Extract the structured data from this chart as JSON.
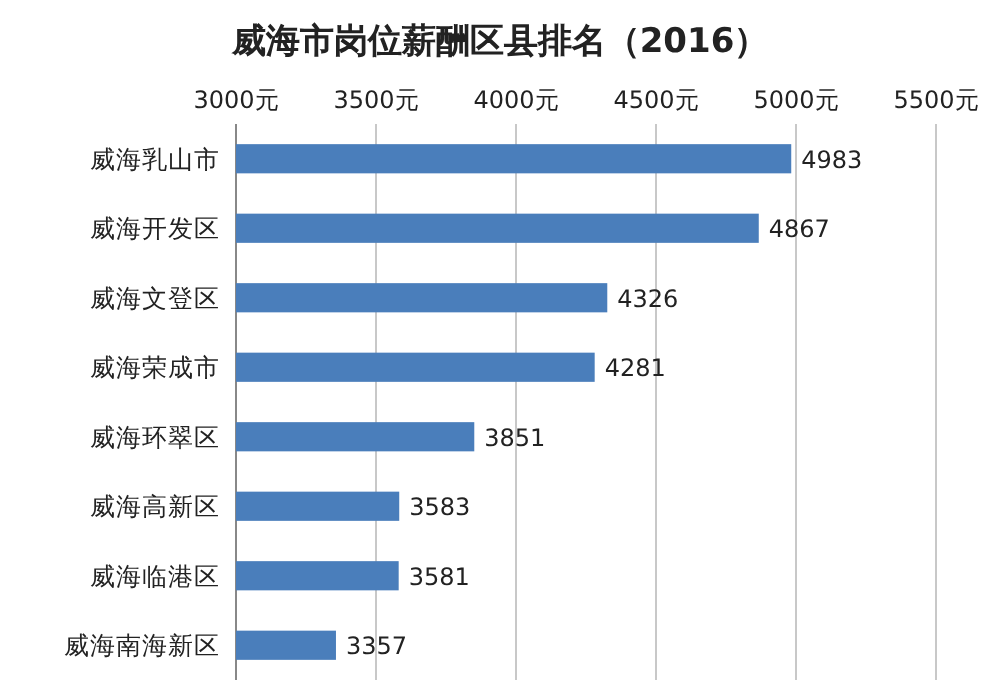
{
  "chart_data": {
    "type": "bar",
    "orientation": "horizontal",
    "title": "威海市岗位薪酬区县排名（2016）",
    "categories": [
      "威海乳山市",
      "威海开发区",
      "威海文登区",
      "威海荣成市",
      "威海环翠区",
      "威海高新区",
      "威海临港区",
      "威海南海新区"
    ],
    "values": [
      4983,
      4867,
      4326,
      4281,
      3851,
      3583,
      3581,
      3357
    ],
    "color": "#4a7ebb",
    "data_labels": true,
    "grid": "x",
    "xlim": [
      3000,
      5500
    ],
    "xticks": [
      {
        "value": 3000,
        "label": "3000元"
      },
      {
        "value": 3500,
        "label": "3500元"
      },
      {
        "value": 4000,
        "label": "4000元"
      },
      {
        "value": 4500,
        "label": "4500元"
      },
      {
        "value": 5000,
        "label": "5000元"
      },
      {
        "value": 5500,
        "label": "5500元"
      }
    ]
  }
}
